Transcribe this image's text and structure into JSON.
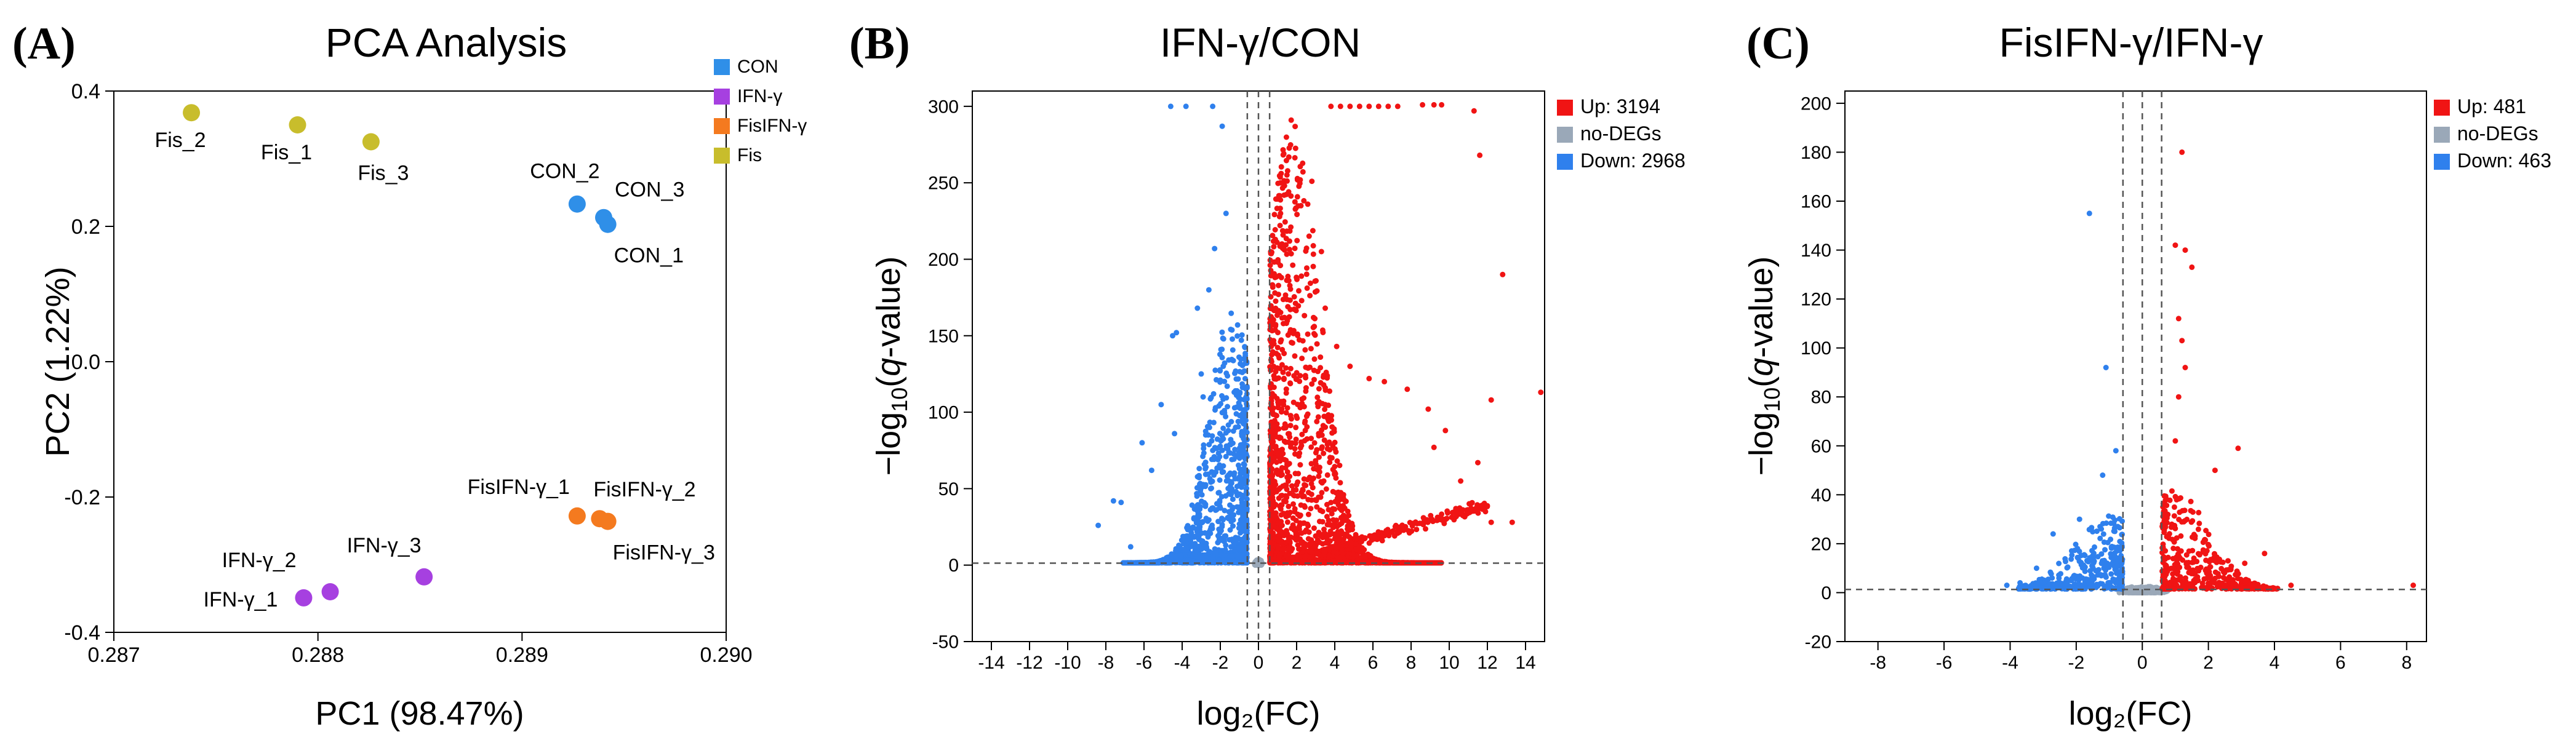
{
  "chart_data": [
    {
      "panel": "(A)",
      "type": "scatter",
      "title": "PCA Analysis",
      "xlabel": "PC1 (98.47%)",
      "ylabel": "PC2 (1.22%)",
      "xlim": [
        0.287,
        0.29
      ],
      "ylim": [
        -0.4,
        0.4
      ],
      "xticks": [
        0.287,
        0.288,
        0.289,
        0.29
      ],
      "xtick_labels": [
        "0.287",
        "0.288",
        "0.289",
        "0.290"
      ],
      "yticks": [
        -0.4,
        -0.2,
        0.0,
        0.2,
        0.4
      ],
      "ytick_labels": [
        "-0.4",
        "-0.2",
        "0.0",
        "0.2",
        "0.4"
      ],
      "legend": [
        {
          "name": "CON",
          "color": "#2f8fe8"
        },
        {
          "name": "IFN-γ",
          "color": "#a640e0"
        },
        {
          "name": "FisIFN-γ",
          "color": "#f47a1f"
        },
        {
          "name": "Fis",
          "color": "#c8bd2c"
        }
      ],
      "points": [
        {
          "label": "Fis_2",
          "group": "Fis",
          "x": 0.28738,
          "y": 0.368,
          "lx": -18,
          "ly": 56,
          "anchor": "middle"
        },
        {
          "label": "Fis_1",
          "group": "Fis",
          "x": 0.2879,
          "y": 0.35,
          "lx": -18,
          "ly": 56,
          "anchor": "middle"
        },
        {
          "label": "Fis_3",
          "group": "Fis",
          "x": 0.28826,
          "y": 0.325,
          "lx": 20,
          "ly": 62,
          "anchor": "middle"
        },
        {
          "label": "CON_2",
          "group": "CON",
          "x": 0.28927,
          "y": 0.233,
          "lx": -20,
          "ly": -42,
          "anchor": "middle"
        },
        {
          "label": "CON_3",
          "group": "CON",
          "x": 0.2894,
          "y": 0.213,
          "lx": 18,
          "ly": -34,
          "anchor": "start"
        },
        {
          "label": "CON_1",
          "group": "CON",
          "x": 0.28942,
          "y": 0.203,
          "lx": 10,
          "ly": 62,
          "anchor": "start"
        },
        {
          "label": "FisIFN-γ_1",
          "group": "FisIFN-γ",
          "x": 0.28927,
          "y": -0.228,
          "lx": -12,
          "ly": -36,
          "anchor": "end"
        },
        {
          "label": "FisIFN-γ_2",
          "group": "FisIFN-γ",
          "x": 0.28938,
          "y": -0.232,
          "lx": -10,
          "ly": -36,
          "anchor": "start"
        },
        {
          "label": "FisIFN-γ_3",
          "group": "FisIFN-γ",
          "x": 0.28942,
          "y": -0.236,
          "lx": 8,
          "ly": 62,
          "anchor": "start"
        },
        {
          "label": "IFN-γ_3",
          "group": "IFN-γ",
          "x": 0.28852,
          "y": -0.318,
          "lx": -65,
          "ly": -40,
          "anchor": "middle"
        },
        {
          "label": "IFN-γ_2",
          "group": "IFN-γ",
          "x": 0.28806,
          "y": -0.34,
          "lx": -55,
          "ly": -40,
          "anchor": "end"
        },
        {
          "label": "IFN-γ_1",
          "group": "IFN-γ",
          "x": 0.28793,
          "y": -0.349,
          "lx": -42,
          "ly": 14,
          "anchor": "end"
        }
      ]
    },
    {
      "panel": "(B)",
      "type": "scatter",
      "title": "IFN-γ/CON",
      "xlabel": "log₂(FC)",
      "ylabel_prefix": "−log",
      "ylabel_sub": "10",
      "ylabel_open": "(",
      "ylabel_italic": "q",
      "ylabel_suffix": "-value)",
      "xlim": [
        -15,
        15
      ],
      "ylim": [
        -50,
        310
      ],
      "xticks": [
        -14,
        -12,
        -10,
        -8,
        -6,
        -4,
        -2,
        0,
        2,
        4,
        6,
        8,
        10,
        12,
        14
      ],
      "xtick_labels": [
        "-14",
        "-12",
        "-10",
        "-8",
        "-6",
        "-4",
        "-2",
        "0",
        "2",
        "4",
        "6",
        "8",
        "10",
        "12",
        "14"
      ],
      "yticks": [
        -50,
        0,
        50,
        100,
        150,
        200,
        250,
        300
      ],
      "ytick_labels": [
        "-50",
        "0",
        "50",
        "100",
        "150",
        "200",
        "250",
        "300"
      ],
      "fc_cutoffs": [
        -0.585,
        0,
        0.585
      ],
      "q_cutoff": 1.3,
      "legend": [
        {
          "name": "Up: 3194",
          "color": "#f01414"
        },
        {
          "name": "no-DEGs",
          "color": "#9aa8b8"
        },
        {
          "name": "Down: 2968",
          "color": "#2f80ed"
        }
      ],
      "series": [
        {
          "name": "Up",
          "count": 3194,
          "color": "#f01414"
        },
        {
          "name": "no-DEGs",
          "color": "#9aa8b8"
        },
        {
          "name": "Down",
          "count": 2968,
          "color": "#2f80ed"
        }
      ],
      "outliers_up": [
        [
          3.8,
          300
        ],
        [
          4.3,
          300
        ],
        [
          4.8,
          300
        ],
        [
          5.3,
          300
        ],
        [
          5.8,
          300
        ],
        [
          6.3,
          300
        ],
        [
          6.8,
          300
        ],
        [
          7.3,
          300
        ],
        [
          8.6,
          301
        ],
        [
          9.2,
          301
        ],
        [
          9.6,
          301
        ],
        [
          11.3,
          297
        ],
        [
          11.6,
          268
        ],
        [
          12.8,
          190
        ],
        [
          12.2,
          108
        ],
        [
          14.8,
          113
        ],
        [
          11.5,
          67
        ],
        [
          10.6,
          55
        ],
        [
          11.9,
          35
        ],
        [
          12.2,
          28
        ],
        [
          13.3,
          28
        ],
        [
          9.8,
          88
        ],
        [
          9.2,
          77
        ],
        [
          8.9,
          102
        ],
        [
          7.8,
          115
        ],
        [
          6.6,
          120
        ],
        [
          5.8,
          122
        ],
        [
          4.8,
          130
        ],
        [
          4.1,
          143
        ],
        [
          3.5,
          168
        ],
        [
          3.3,
          205
        ],
        [
          2.8,
          251
        ]
      ],
      "outliers_down": [
        [
          -4.6,
          300
        ],
        [
          -3.8,
          300
        ],
        [
          -2.4,
          300
        ],
        [
          -1.9,
          287
        ],
        [
          -1.7,
          230
        ],
        [
          -2.3,
          207
        ],
        [
          -2.6,
          180
        ],
        [
          -4.5,
          150
        ],
        [
          -4.3,
          152
        ],
        [
          -3.2,
          168
        ],
        [
          -3.0,
          125
        ],
        [
          -2.9,
          110
        ],
        [
          -5.1,
          105
        ],
        [
          -6.1,
          80
        ],
        [
          -4.4,
          86
        ],
        [
          -5.6,
          62
        ],
        [
          -7.6,
          42
        ],
        [
          -7.2,
          41
        ],
        [
          -8.4,
          26
        ],
        [
          -6.7,
          12
        ]
      ]
    },
    {
      "panel": "(C)",
      "type": "scatter",
      "title": "FisIFN-γ/IFN-γ",
      "xlabel": "log₂(FC)",
      "ylabel_prefix": "−log",
      "ylabel_sub": "10",
      "ylabel_open": "(",
      "ylabel_italic": "q",
      "ylabel_suffix": "-value)",
      "xlim": [
        -9,
        8.6
      ],
      "ylim": [
        -20,
        205
      ],
      "xticks": [
        -8,
        -6,
        -4,
        -2,
        0,
        2,
        4,
        6,
        8
      ],
      "xtick_labels": [
        "-8",
        "-6",
        "-4",
        "-2",
        "0",
        "2",
        "4",
        "6",
        "8"
      ],
      "yticks": [
        -20,
        0,
        20,
        40,
        60,
        80,
        100,
        120,
        140,
        160,
        180,
        200
      ],
      "ytick_labels": [
        "-20",
        "0",
        "20",
        "40",
        "60",
        "80",
        "100",
        "120",
        "140",
        "160",
        "180",
        "200"
      ],
      "fc_cutoffs": [
        -0.585,
        0,
        0.585
      ],
      "q_cutoff": 1.3,
      "legend": [
        {
          "name": "Up: 481",
          "color": "#f01414"
        },
        {
          "name": "no-DEGs",
          "color": "#9aa8b8"
        },
        {
          "name": "Down: 463",
          "color": "#2f80ed"
        }
      ],
      "series": [
        {
          "name": "Up",
          "count": 481,
          "color": "#f01414"
        },
        {
          "name": "no-DEGs",
          "color": "#9aa8b8"
        },
        {
          "name": "Down",
          "count": 463,
          "color": "#2f80ed"
        }
      ],
      "outliers_up": [
        [
          1.2,
          180
        ],
        [
          1.0,
          142
        ],
        [
          1.3,
          140
        ],
        [
          1.5,
          133
        ],
        [
          1.1,
          112
        ],
        [
          1.2,
          103
        ],
        [
          1.3,
          92
        ],
        [
          1.1,
          80
        ],
        [
          1.0,
          62
        ],
        [
          2.9,
          59
        ],
        [
          2.2,
          50
        ],
        [
          3.7,
          16
        ],
        [
          3.1,
          12
        ],
        [
          8.2,
          3
        ],
        [
          4.5,
          3
        ]
      ],
      "outliers_down": [
        [
          -1.6,
          155
        ],
        [
          -1.1,
          92
        ],
        [
          -0.8,
          58
        ],
        [
          -1.2,
          48
        ],
        [
          -1.9,
          30
        ],
        [
          -2.7,
          24
        ],
        [
          -3.2,
          10
        ],
        [
          -4.1,
          3
        ],
        [
          -3.7,
          4
        ]
      ]
    }
  ]
}
